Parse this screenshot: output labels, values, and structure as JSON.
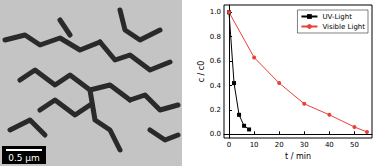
{
  "chart_data": {
    "type": "line",
    "xlabel": "t / min",
    "ylabel": "c / c0",
    "xlim": [
      -2,
      57
    ],
    "xticks": [
      0,
      10,
      20,
      30,
      40,
      50
    ],
    "ylim": [
      -0.03,
      1.06
    ],
    "yticks": [
      {
        "value": 0,
        "label": "0.0"
      },
      0.2,
      0.4,
      0.6,
      0.8,
      {
        "value": 1,
        "label": "1.0"
      }
    ],
    "legend": "upper right",
    "series": [
      {
        "name": "UV-Light",
        "color": "#000000",
        "marker": "square",
        "x": [
          0,
          2,
          4,
          6,
          8
        ],
        "values": [
          1.0,
          0.42,
          0.16,
          0.07,
          0.04
        ]
      },
      {
        "name": "Visible Light",
        "color": "#e8413a",
        "marker": "circle",
        "x": [
          0,
          10,
          20,
          30,
          40,
          50,
          55
        ],
        "values": [
          1.0,
          0.63,
          0.42,
          0.25,
          0.16,
          0.06,
          0.02
        ]
      }
    ]
  },
  "micrograph": {
    "scale_bar_label": "0.5 μm"
  }
}
